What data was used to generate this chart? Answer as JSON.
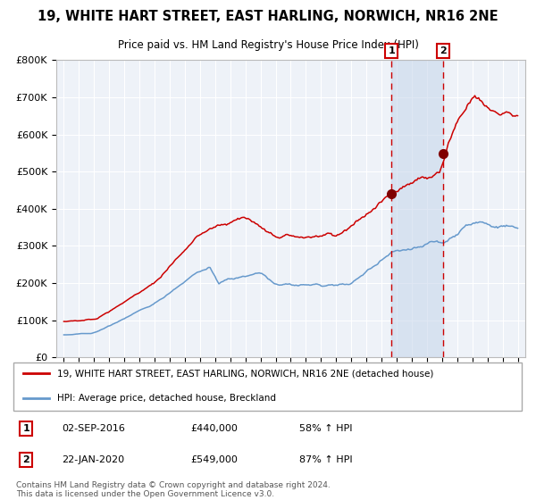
{
  "title": "19, WHITE HART STREET, EAST HARLING, NORWICH, NR16 2NE",
  "subtitle": "Price paid vs. HM Land Registry's House Price Index (HPI)",
  "legend_red": "19, WHITE HART STREET, EAST HARLING, NORWICH, NR16 2NE (detached house)",
  "legend_blue": "HPI: Average price, detached house, Breckland",
  "annotation1_label": "1",
  "annotation1_date": "02-SEP-2016",
  "annotation1_price": "£440,000",
  "annotation1_hpi": "58% ↑ HPI",
  "annotation2_label": "2",
  "annotation2_date": "22-JAN-2020",
  "annotation2_price": "£549,000",
  "annotation2_hpi": "87% ↑ HPI",
  "footer": "Contains HM Land Registry data © Crown copyright and database right 2024.\nThis data is licensed under the Open Government Licence v3.0.",
  "ylim": [
    0,
    800000
  ],
  "yticks": [
    0,
    100000,
    200000,
    300000,
    400000,
    500000,
    600000,
    700000,
    800000
  ],
  "ytick_labels": [
    "£0",
    "£100K",
    "£200K",
    "£300K",
    "£400K",
    "£500K",
    "£600K",
    "£700K",
    "£800K"
  ],
  "background_color": "#eef2f8",
  "red_color": "#cc0000",
  "blue_color": "#6699cc",
  "marker_color": "#800000",
  "vline1_x": 2016.67,
  "vline2_x": 2020.06,
  "shade_start": 2016.67,
  "shade_end": 2020.06,
  "point1_x": 2016.67,
  "point1_y": 440000,
  "point2_x": 2020.06,
  "point2_y": 549000,
  "xmin": 1994.5,
  "xmax": 2025.5
}
